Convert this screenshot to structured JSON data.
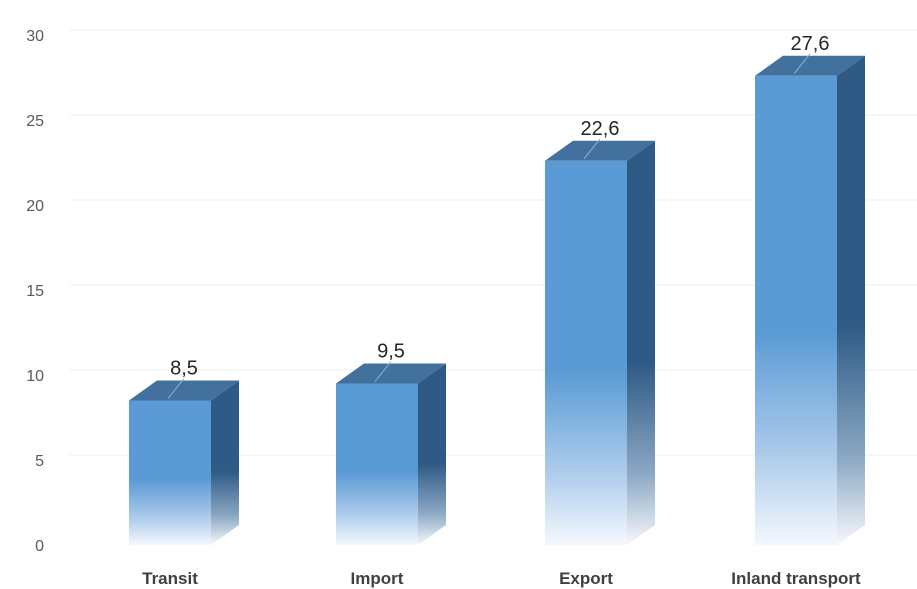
{
  "chart_data": {
    "type": "bar",
    "style": "3d-column",
    "categories": [
      "Transit",
      "Import",
      "Export",
      "Inland transport"
    ],
    "values": [
      8.5,
      9.5,
      22.6,
      27.6
    ],
    "value_labels": [
      "8,5",
      "9,5",
      "22,6",
      "27,6"
    ],
    "y_ticks": [
      "0",
      "5",
      "10",
      "15",
      "20",
      "25",
      "30"
    ],
    "ylim": [
      0,
      30
    ],
    "title": "",
    "xlabel": "",
    "ylabel": "",
    "grid": true,
    "legend": "none",
    "colors": {
      "front": "#5b9bd5",
      "top": "#41719c",
      "side": "#2e5a85",
      "grid": "#ececec",
      "axis_text": "#595959"
    }
  }
}
